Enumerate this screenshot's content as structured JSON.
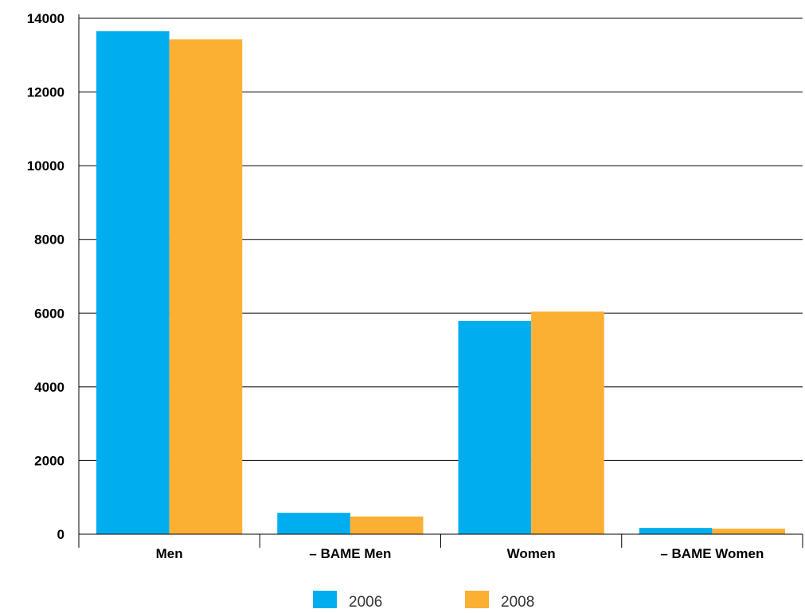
{
  "chart_data": {
    "type": "bar",
    "title": "",
    "xlabel": "",
    "ylabel": "",
    "categories": [
      "Men",
      "– BAME Men",
      "Women",
      "– BAME Women"
    ],
    "series": [
      {
        "name": "2006",
        "color": "#00aeef",
        "values": [
          13650,
          580,
          5790,
          170
        ]
      },
      {
        "name": "2008",
        "color": "#fbb034",
        "values": [
          13430,
          480,
          6040,
          150
        ]
      }
    ],
    "ylim": [
      0,
      14000
    ],
    "yticks": [
      0,
      2000,
      4000,
      6000,
      8000,
      10000,
      12000,
      14000
    ],
    "grid": true,
    "legend_position": "bottom"
  }
}
